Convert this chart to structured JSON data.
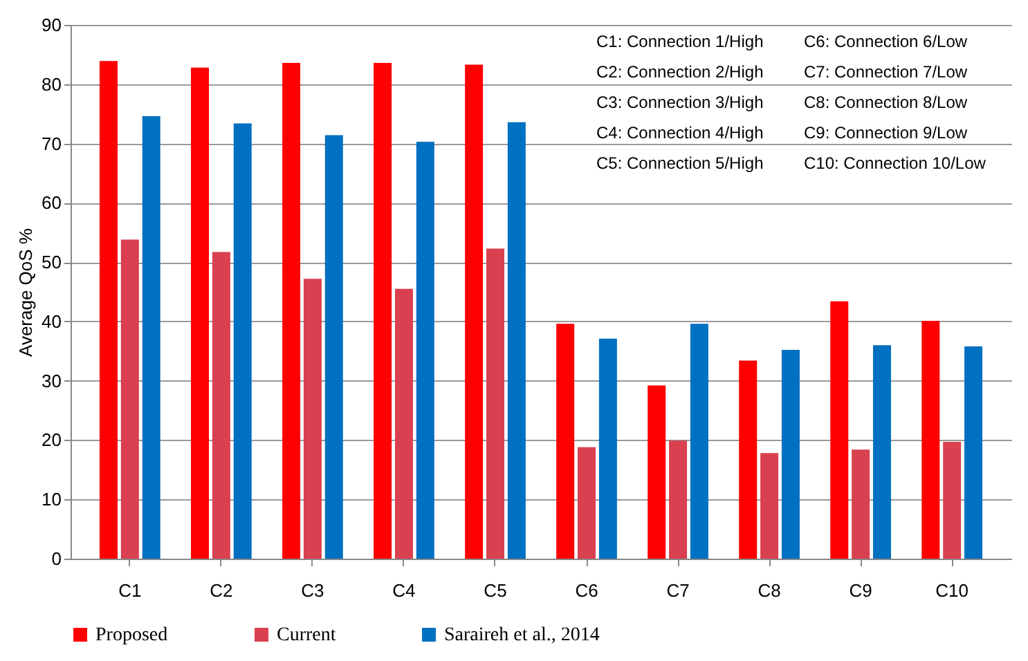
{
  "chart_data": {
    "type": "bar",
    "ylabel": "Average QoS %",
    "categories": [
      "C1",
      "C2",
      "C3",
      "C4",
      "C5",
      "C6",
      "C7",
      "C8",
      "C9",
      "C10"
    ],
    "series": [
      {
        "name": "Proposed",
        "color": "#ff0000",
        "values": [
          83.9,
          82.8,
          83.6,
          83.6,
          83.3,
          39.6,
          29.2,
          33.4,
          43.4,
          40.1
        ]
      },
      {
        "name": "Current",
        "color": "#d94050",
        "values": [
          53.8,
          51.7,
          47.2,
          45.5,
          52.3,
          18.8,
          19.9,
          17.8,
          18.4,
          19.7
        ]
      },
      {
        "name": "Saraireh et al., 2014",
        "color": "#0070c0",
        "values": [
          74.6,
          73.4,
          71.4,
          70.3,
          73.6,
          37.1,
          39.6,
          35.2,
          36.0,
          35.8
        ]
      }
    ],
    "ylim": [
      0,
      90
    ],
    "yticks": [
      0,
      10,
      20,
      30,
      40,
      50,
      60,
      70,
      80,
      90
    ],
    "grid": "y",
    "legend": "bottom",
    "annotations": [
      "C1: Connection 1/High",
      "C2: Connection 2/High",
      "C3: Connection 3/High",
      "C4: Connection 4/High",
      "C5: Connection 5/High",
      "C6: Connection 6/Low",
      "C7: Connection 7/Low",
      "C8: Connection 8/Low",
      "C9: Connection 9/Low",
      "C10: Connection 10/Low"
    ]
  }
}
